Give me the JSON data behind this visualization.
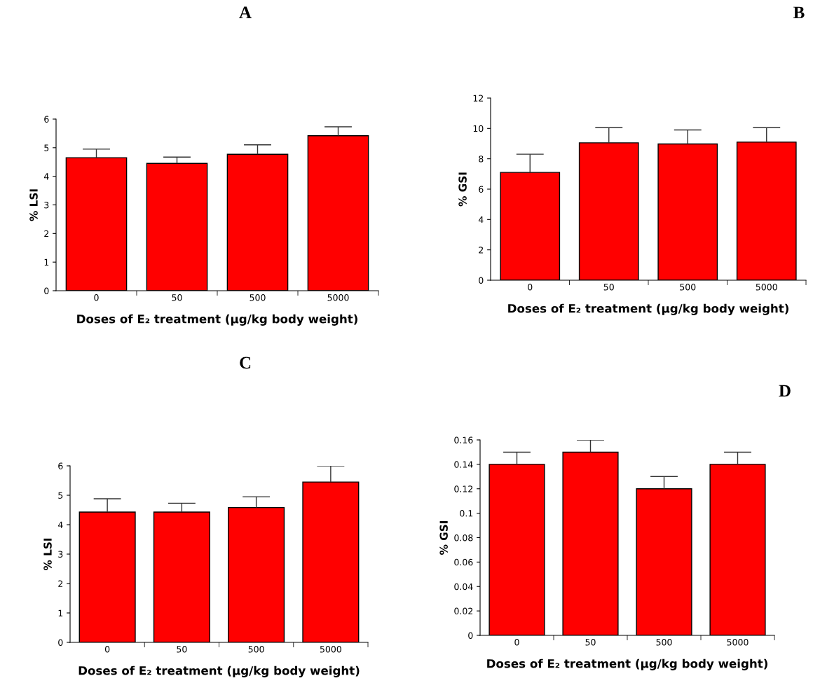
{
  "chart_data": [
    {
      "type": "bar",
      "title": "A",
      "xlabel": "Doses of E₂ treatment (μg/kg body weight)",
      "ylabel": "% LSI",
      "categories": [
        "0",
        "50",
        "500",
        "5000"
      ],
      "values": [
        4.65,
        4.45,
        4.77,
        5.42
      ],
      "errors": [
        [
          4.65,
          4.95
        ],
        [
          4.45,
          4.67
        ],
        [
          4.77,
          5.1
        ],
        [
          5.42,
          5.73
        ]
      ],
      "color": "#ff0000",
      "ylim": [
        0,
        6
      ],
      "yticks": [
        0,
        1,
        2,
        3,
        4,
        5,
        6
      ],
      "grid": false
    },
    {
      "type": "bar",
      "title": "B",
      "xlabel": "Doses of E₂ treatment (μg/kg body weight)",
      "ylabel": "% GSI",
      "categories": [
        "0",
        "50",
        "500",
        "5000"
      ],
      "values": [
        7.1,
        9.05,
        8.98,
        9.1
      ],
      "errors": [
        [
          7.1,
          8.3
        ],
        [
          9.05,
          10.05
        ],
        [
          8.98,
          9.9
        ],
        [
          9.1,
          10.05
        ]
      ],
      "color": "#ff0000",
      "ylim": [
        0,
        12
      ],
      "yticks": [
        0,
        2,
        4,
        6,
        8,
        10,
        12
      ],
      "grid": false
    },
    {
      "type": "bar",
      "title": "C",
      "xlabel": "Doses of E₂ treatment (μg/kg body weight)",
      "ylabel": "% LSI",
      "categories": [
        "0",
        "50",
        "500",
        "5000"
      ],
      "values": [
        4.43,
        4.43,
        4.58,
        5.45
      ],
      "errors": [
        [
          4.43,
          4.88
        ],
        [
          4.43,
          4.73
        ],
        [
          4.58,
          4.95
        ],
        [
          5.45,
          6.0
        ]
      ],
      "color": "#ff0000",
      "ylim": [
        0,
        6
      ],
      "yticks": [
        0,
        1,
        2,
        3,
        4,
        5,
        6
      ],
      "grid": false
    },
    {
      "type": "bar",
      "title": "D",
      "xlabel": "Doses of E₂ treatment (μg/kg body weight)",
      "ylabel": "% GSI",
      "categories": [
        "0",
        "50",
        "500",
        "5000"
      ],
      "values": [
        0.14,
        0.15,
        0.12,
        0.14
      ],
      "errors": [
        [
          0.14,
          0.15
        ],
        [
          0.15,
          0.16
        ],
        [
          0.12,
          0.13
        ],
        [
          0.14,
          0.15
        ]
      ],
      "color": "#ff0000",
      "ylim": [
        0,
        0.16
      ],
      "yticks": [
        0,
        0.02,
        0.04,
        0.06,
        0.08,
        0.1,
        0.12,
        0.14,
        0.16
      ],
      "grid": false
    }
  ]
}
